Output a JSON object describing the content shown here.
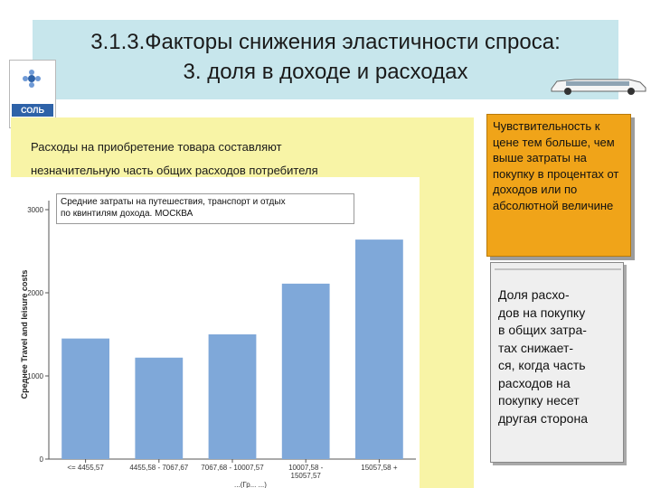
{
  "title": {
    "line1": "3.1.3.Факторы снижения эластичности спроса:",
    "line2": "3. доля в доходе и расходах"
  },
  "salt_package": {
    "label": "СОЛЬ"
  },
  "lead_text": {
    "line1": "Расходы на приобретение товара составляют",
    "line2": "незначительную часть общих расходов потребителя"
  },
  "side_boxes": {
    "orange": "Чувствительность к цене тем больше, чем выше затраты на покупку в процентах от доходов или по абсолютной величине",
    "gray_lines": [
      "Доля расхо-",
      "дов на покупку",
      "в общих затра-",
      "тах снижает-",
      "ся, когда часть",
      "расходов на",
      "покупку несет",
      "другая сторона"
    ]
  },
  "colors": {
    "title_band": "#c7e6ec",
    "panel": "#f8f4a6",
    "bar": "#7fa8d9",
    "orange": "#f0a419",
    "gray_box": "#efefef"
  },
  "chart_data": {
    "type": "bar",
    "title_line1": "Средние затраты на путешествия, транспорт и отдых",
    "title_line2": "по квинтилям дохода. МОСКВА",
    "ylabel": "Среднее Travel and leisure costs",
    "ylim": [
      0,
      3000
    ],
    "yticks": [
      "0",
      "1000",
      "2000",
      "3000"
    ],
    "ytick_values": [
      0,
      1000,
      2000,
      3000
    ],
    "categories": [
      "<= 4455,57",
      "4455,58 - 7067,67",
      "7067,68 - 10007,57",
      "10007,58 -\n15057,57",
      "15057,58 +"
    ],
    "values": [
      1450,
      1220,
      1500,
      2110,
      2640
    ],
    "xlabel_fragment": "...(Гр... ...)"
  }
}
